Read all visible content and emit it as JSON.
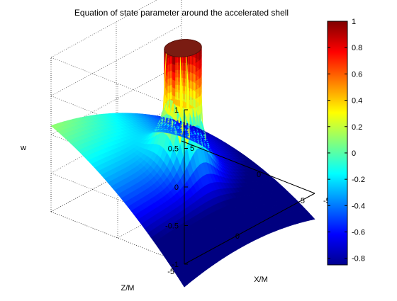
{
  "chart_data": {
    "type": "surface",
    "title": "Equation of state parameter around the accelerated shell",
    "xlabel": "X/M",
    "ylabel": "Z/M",
    "zlabel": "w",
    "xlim": [
      -5,
      5
    ],
    "ylim": [
      -5,
      5
    ],
    "zlim": [
      -1,
      1
    ],
    "x_ticks": [
      "-5",
      "0",
      "5"
    ],
    "y_ticks": [
      "-5",
      "0",
      "5"
    ],
    "z_ticks": [
      "-1",
      "-0.5",
      "0",
      "0.5",
      "1"
    ],
    "colorbar": {
      "colormap": "jet",
      "range": [
        -0.85,
        1
      ],
      "ticks": [
        "1",
        "0.8",
        "0.6",
        "0.4",
        "0.2",
        "0",
        "-0.2",
        "-0.4",
        "-0.6",
        "-0.8"
      ]
    },
    "surface_samples": {
      "description_points": [
        {
          "x": -5,
          "z": -5,
          "w": -0.05
        },
        {
          "x": 5,
          "z": -5,
          "w": -0.95
        },
        {
          "x": -5,
          "z": 5,
          "w": -1.0
        },
        {
          "x": 5,
          "z": 5,
          "w": -0.35
        },
        {
          "x": 0,
          "z": 0,
          "w": 1.0
        }
      ],
      "shell_radius": 1.0
    },
    "grid": true
  }
}
